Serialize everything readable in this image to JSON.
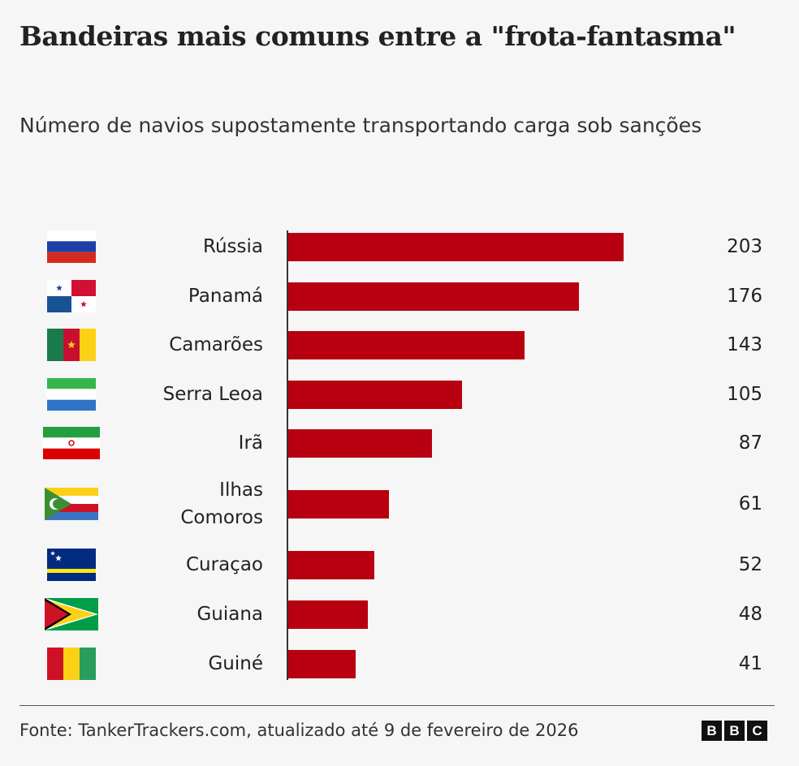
{
  "title": "Bandeiras mais comuns entre a \"frota-fantasma\"",
  "subtitle": "Número de navios supostamente transportando carga sob sanções",
  "source": "Fonte: TankerTrackers.com, atualizado até 9 de fevereiro de 2026",
  "logo": [
    "B",
    "B",
    "C"
  ],
  "colors": {
    "bar": "#b80011",
    "background": "#f6f6f6"
  },
  "chart_data": {
    "type": "bar",
    "orientation": "horizontal",
    "title": "Bandeiras mais comuns entre a \"frota-fantasma\"",
    "subtitle": "Número de navios supostamente transportando carga sob sanções",
    "categories": [
      "Rússia",
      "Panamá",
      "Camarões",
      "Serra Leoa",
      "Irã",
      "Ilhas Comoros",
      "Curaçao",
      "Guiana",
      "Guiné"
    ],
    "values": [
      203,
      176,
      143,
      105,
      87,
      61,
      52,
      48,
      41
    ],
    "flags": [
      "russia-flag",
      "panama-flag",
      "cameroon-flag",
      "sierra-leone-flag",
      "iran-flag",
      "comoros-flag",
      "curacao-flag",
      "guyana-flag",
      "guinea-flag"
    ],
    "xlim": [
      0,
      203
    ],
    "grid": false,
    "legend": "none"
  }
}
